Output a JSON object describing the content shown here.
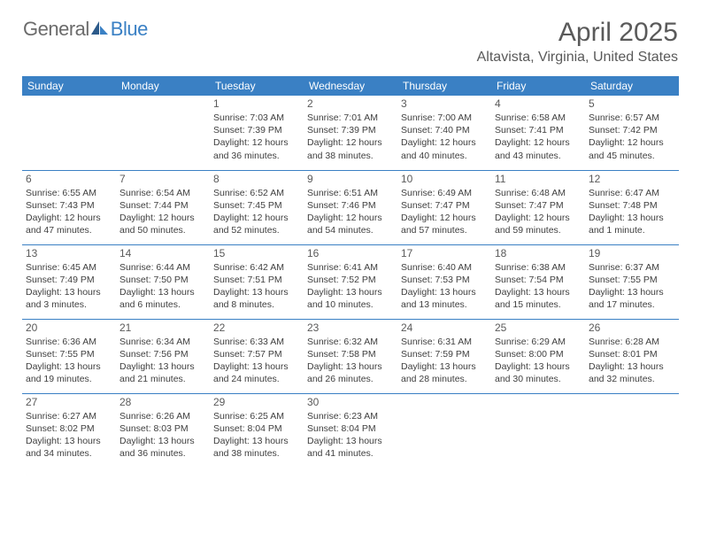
{
  "logo": {
    "text1": "General",
    "text2": "Blue"
  },
  "title": "April 2025",
  "location": "Altavista, Virginia, United States",
  "colors": {
    "accent": "#3a80c4",
    "text_muted": "#5a5a5a",
    "text_body": "#3f3f3f",
    "background": "#ffffff"
  },
  "dayNames": [
    "Sunday",
    "Monday",
    "Tuesday",
    "Wednesday",
    "Thursday",
    "Friday",
    "Saturday"
  ],
  "weeks": [
    [
      null,
      null,
      {
        "n": "1",
        "sr": "Sunrise: 7:03 AM",
        "ss": "Sunset: 7:39 PM",
        "d1": "Daylight: 12 hours",
        "d2": "and 36 minutes."
      },
      {
        "n": "2",
        "sr": "Sunrise: 7:01 AM",
        "ss": "Sunset: 7:39 PM",
        "d1": "Daylight: 12 hours",
        "d2": "and 38 minutes."
      },
      {
        "n": "3",
        "sr": "Sunrise: 7:00 AM",
        "ss": "Sunset: 7:40 PM",
        "d1": "Daylight: 12 hours",
        "d2": "and 40 minutes."
      },
      {
        "n": "4",
        "sr": "Sunrise: 6:58 AM",
        "ss": "Sunset: 7:41 PM",
        "d1": "Daylight: 12 hours",
        "d2": "and 43 minutes."
      },
      {
        "n": "5",
        "sr": "Sunrise: 6:57 AM",
        "ss": "Sunset: 7:42 PM",
        "d1": "Daylight: 12 hours",
        "d2": "and 45 minutes."
      }
    ],
    [
      {
        "n": "6",
        "sr": "Sunrise: 6:55 AM",
        "ss": "Sunset: 7:43 PM",
        "d1": "Daylight: 12 hours",
        "d2": "and 47 minutes."
      },
      {
        "n": "7",
        "sr": "Sunrise: 6:54 AM",
        "ss": "Sunset: 7:44 PM",
        "d1": "Daylight: 12 hours",
        "d2": "and 50 minutes."
      },
      {
        "n": "8",
        "sr": "Sunrise: 6:52 AM",
        "ss": "Sunset: 7:45 PM",
        "d1": "Daylight: 12 hours",
        "d2": "and 52 minutes."
      },
      {
        "n": "9",
        "sr": "Sunrise: 6:51 AM",
        "ss": "Sunset: 7:46 PM",
        "d1": "Daylight: 12 hours",
        "d2": "and 54 minutes."
      },
      {
        "n": "10",
        "sr": "Sunrise: 6:49 AM",
        "ss": "Sunset: 7:47 PM",
        "d1": "Daylight: 12 hours",
        "d2": "and 57 minutes."
      },
      {
        "n": "11",
        "sr": "Sunrise: 6:48 AM",
        "ss": "Sunset: 7:47 PM",
        "d1": "Daylight: 12 hours",
        "d2": "and 59 minutes."
      },
      {
        "n": "12",
        "sr": "Sunrise: 6:47 AM",
        "ss": "Sunset: 7:48 PM",
        "d1": "Daylight: 13 hours",
        "d2": "and 1 minute."
      }
    ],
    [
      {
        "n": "13",
        "sr": "Sunrise: 6:45 AM",
        "ss": "Sunset: 7:49 PM",
        "d1": "Daylight: 13 hours",
        "d2": "and 3 minutes."
      },
      {
        "n": "14",
        "sr": "Sunrise: 6:44 AM",
        "ss": "Sunset: 7:50 PM",
        "d1": "Daylight: 13 hours",
        "d2": "and 6 minutes."
      },
      {
        "n": "15",
        "sr": "Sunrise: 6:42 AM",
        "ss": "Sunset: 7:51 PM",
        "d1": "Daylight: 13 hours",
        "d2": "and 8 minutes."
      },
      {
        "n": "16",
        "sr": "Sunrise: 6:41 AM",
        "ss": "Sunset: 7:52 PM",
        "d1": "Daylight: 13 hours",
        "d2": "and 10 minutes."
      },
      {
        "n": "17",
        "sr": "Sunrise: 6:40 AM",
        "ss": "Sunset: 7:53 PM",
        "d1": "Daylight: 13 hours",
        "d2": "and 13 minutes."
      },
      {
        "n": "18",
        "sr": "Sunrise: 6:38 AM",
        "ss": "Sunset: 7:54 PM",
        "d1": "Daylight: 13 hours",
        "d2": "and 15 minutes."
      },
      {
        "n": "19",
        "sr": "Sunrise: 6:37 AM",
        "ss": "Sunset: 7:55 PM",
        "d1": "Daylight: 13 hours",
        "d2": "and 17 minutes."
      }
    ],
    [
      {
        "n": "20",
        "sr": "Sunrise: 6:36 AM",
        "ss": "Sunset: 7:55 PM",
        "d1": "Daylight: 13 hours",
        "d2": "and 19 minutes."
      },
      {
        "n": "21",
        "sr": "Sunrise: 6:34 AM",
        "ss": "Sunset: 7:56 PM",
        "d1": "Daylight: 13 hours",
        "d2": "and 21 minutes."
      },
      {
        "n": "22",
        "sr": "Sunrise: 6:33 AM",
        "ss": "Sunset: 7:57 PM",
        "d1": "Daylight: 13 hours",
        "d2": "and 24 minutes."
      },
      {
        "n": "23",
        "sr": "Sunrise: 6:32 AM",
        "ss": "Sunset: 7:58 PM",
        "d1": "Daylight: 13 hours",
        "d2": "and 26 minutes."
      },
      {
        "n": "24",
        "sr": "Sunrise: 6:31 AM",
        "ss": "Sunset: 7:59 PM",
        "d1": "Daylight: 13 hours",
        "d2": "and 28 minutes."
      },
      {
        "n": "25",
        "sr": "Sunrise: 6:29 AM",
        "ss": "Sunset: 8:00 PM",
        "d1": "Daylight: 13 hours",
        "d2": "and 30 minutes."
      },
      {
        "n": "26",
        "sr": "Sunrise: 6:28 AM",
        "ss": "Sunset: 8:01 PM",
        "d1": "Daylight: 13 hours",
        "d2": "and 32 minutes."
      }
    ],
    [
      {
        "n": "27",
        "sr": "Sunrise: 6:27 AM",
        "ss": "Sunset: 8:02 PM",
        "d1": "Daylight: 13 hours",
        "d2": "and 34 minutes."
      },
      {
        "n": "28",
        "sr": "Sunrise: 6:26 AM",
        "ss": "Sunset: 8:03 PM",
        "d1": "Daylight: 13 hours",
        "d2": "and 36 minutes."
      },
      {
        "n": "29",
        "sr": "Sunrise: 6:25 AM",
        "ss": "Sunset: 8:04 PM",
        "d1": "Daylight: 13 hours",
        "d2": "and 38 minutes."
      },
      {
        "n": "30",
        "sr": "Sunrise: 6:23 AM",
        "ss": "Sunset: 8:04 PM",
        "d1": "Daylight: 13 hours",
        "d2": "and 41 minutes."
      },
      null,
      null,
      null
    ]
  ]
}
